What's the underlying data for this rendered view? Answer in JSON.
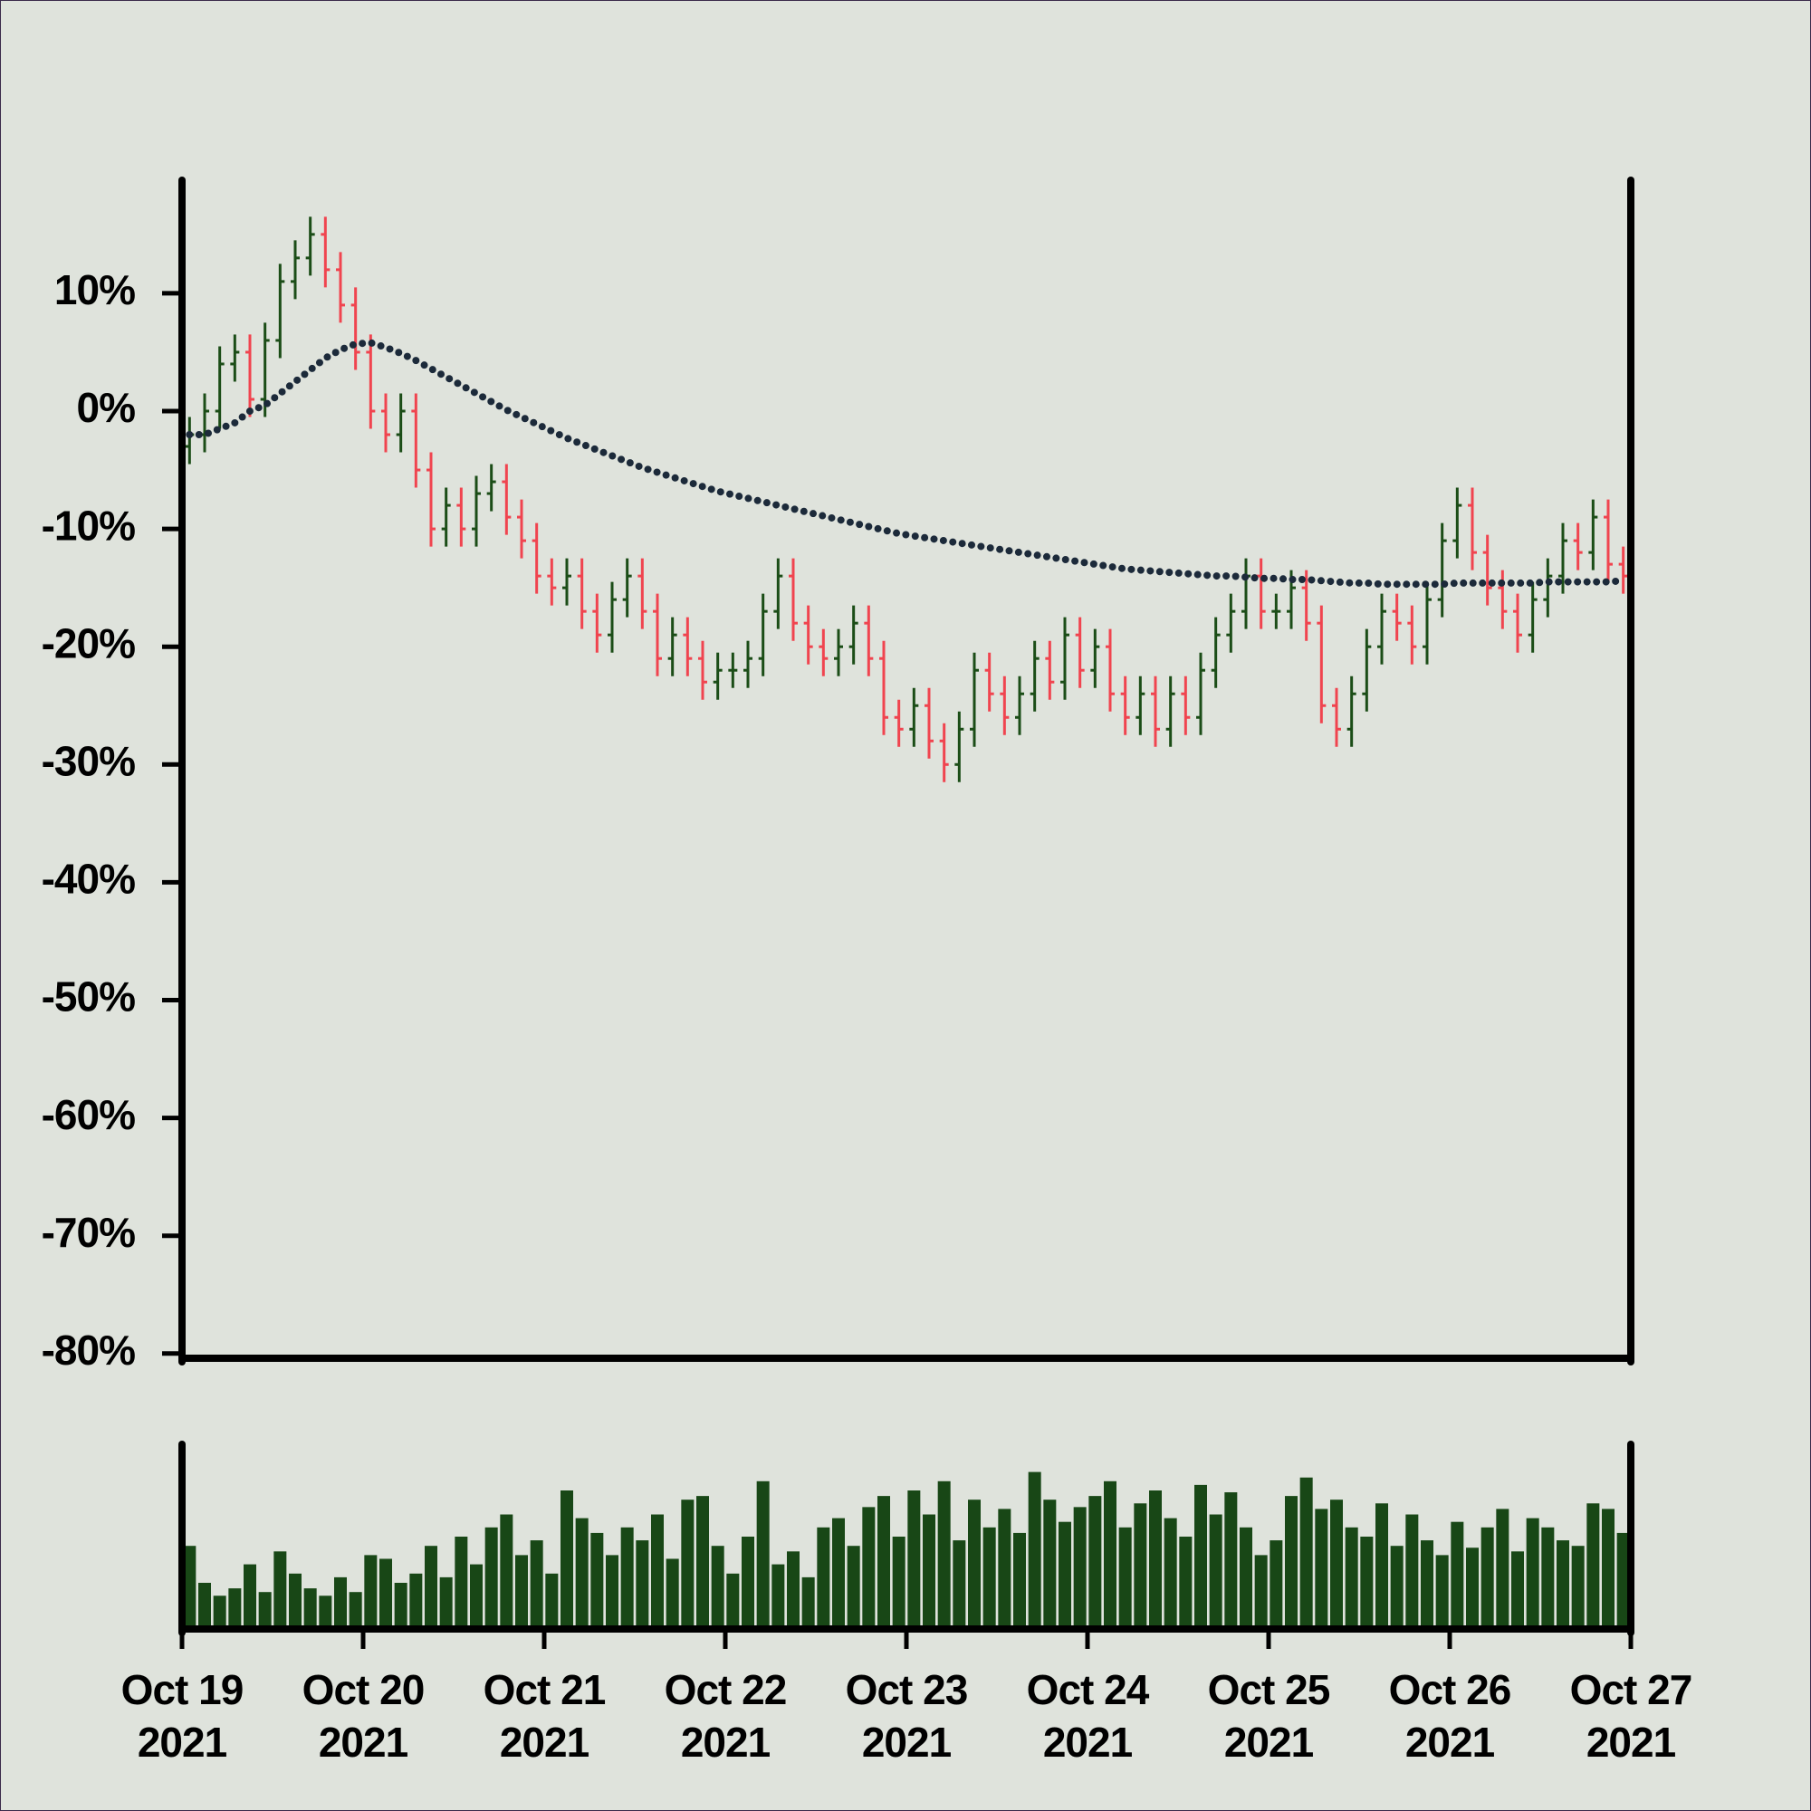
{
  "chart_data": [
    {
      "type": "ohlc",
      "up_color": "#1b4d17",
      "down_color": "#f0444f",
      "ylim": [
        -80.4,
        19.6
      ],
      "yticks": [
        {
          "value": 10,
          "label": "10%"
        },
        {
          "value": 0,
          "label": "0%"
        },
        {
          "value": -10,
          "label": "-10%"
        },
        {
          "value": -20,
          "label": "-20%"
        },
        {
          "value": -30,
          "label": "-30%"
        },
        {
          "value": -40,
          "label": "-40%"
        },
        {
          "value": -50,
          "label": "-50%"
        },
        {
          "value": -60,
          "label": "-60%"
        },
        {
          "value": -70,
          "label": "-70%"
        },
        {
          "value": -80,
          "label": "-80%"
        }
      ],
      "open": [
        -3,
        -2,
        0,
        4,
        5,
        1,
        6,
        11,
        13,
        15,
        12,
        9,
        5,
        0,
        -2,
        0,
        -5,
        -10,
        -8,
        -10,
        -7,
        -6,
        -9,
        -11,
        -14,
        -15,
        -14,
        -17,
        -19,
        -16,
        -14,
        -17,
        -21,
        -19,
        -21,
        -23,
        -22,
        -22,
        -21,
        -17,
        -14,
        -18,
        -20,
        -21,
        -20,
        -18,
        -21,
        -26,
        -27,
        -25,
        -28,
        -30,
        -27,
        -22,
        -24,
        -26,
        -24,
        -21,
        -23,
        -19,
        -22,
        -20,
        -24,
        -26,
        -24,
        -27,
        -24,
        -26,
        -22,
        -19,
        -17,
        -14,
        -17,
        -17,
        -15,
        -18,
        -25,
        -27,
        -24,
        -20,
        -17,
        -18,
        -20,
        -16,
        -11,
        -8,
        -12,
        -15,
        -17,
        -19,
        -16,
        -14,
        -11,
        -12,
        -9,
        -13
      ],
      "high": [
        -0.5,
        1.5,
        5.5,
        6.5,
        6.5,
        7.5,
        12.5,
        14.5,
        16.5,
        16.5,
        13.5,
        10.5,
        6.5,
        1.5,
        1.5,
        1.5,
        -3.5,
        -6.5,
        -6.5,
        -5.5,
        -4.5,
        -4.5,
        -7.5,
        -9.5,
        -12.5,
        -12.5,
        -12.5,
        -15.5,
        -14.5,
        -12.5,
        -12.5,
        -15.5,
        -17.5,
        -17.5,
        -19.5,
        -20.5,
        -20.5,
        -19.5,
        -15.5,
        -12.5,
        -12.5,
        -16.5,
        -18.5,
        -18.5,
        -16.5,
        -16.5,
        -19.5,
        -24.5,
        -23.5,
        -23.5,
        -26.5,
        -25.5,
        -20.5,
        -20.5,
        -22.5,
        -22.5,
        -19.5,
        -19.5,
        -17.5,
        -17.5,
        -18.5,
        -18.5,
        -22.5,
        -22.5,
        -22.5,
        -22.5,
        -22.5,
        -20.5,
        -17.5,
        -15.5,
        -12.5,
        -12.5,
        -15.5,
        -13.5,
        -13.5,
        -16.5,
        -23.5,
        -22.5,
        -18.5,
        -15.5,
        -15.5,
        -16.5,
        -14.5,
        -9.5,
        -6.5,
        -6.5,
        -10.5,
        -13.5,
        -15.5,
        -14.5,
        -12.5,
        -9.5,
        -9.5,
        -7.5,
        -7.5,
        -11.5
      ],
      "low": [
        -4.5,
        -3.5,
        -1.5,
        2.5,
        -0.5,
        -0.5,
        4.5,
        9.5,
        11.5,
        10.5,
        7.5,
        3.5,
        -1.5,
        -3.5,
        -3.5,
        -6.5,
        -11.5,
        -11.5,
        -11.5,
        -11.5,
        -8.5,
        -10.5,
        -12.5,
        -15.5,
        -16.5,
        -16.5,
        -18.5,
        -20.5,
        -20.5,
        -17.5,
        -18.5,
        -22.5,
        -22.5,
        -22.5,
        -24.5,
        -24.5,
        -23.5,
        -23.5,
        -22.5,
        -18.5,
        -19.5,
        -21.5,
        -22.5,
        -22.5,
        -21.5,
        -22.5,
        -27.5,
        -28.5,
        -28.5,
        -29.5,
        -31.5,
        -31.5,
        -28.5,
        -25.5,
        -27.5,
        -27.5,
        -25.5,
        -24.5,
        -24.5,
        -23.5,
        -23.5,
        -25.5,
        -27.5,
        -27.5,
        -28.5,
        -28.5,
        -27.5,
        -27.5,
        -23.5,
        -20.5,
        -18.5,
        -18.5,
        -18.5,
        -18.5,
        -19.5,
        -26.5,
        -28.5,
        -28.5,
        -25.5,
        -21.5,
        -19.5,
        -21.5,
        -21.5,
        -17.5,
        -12.5,
        -13.5,
        -16.5,
        -18.5,
        -20.5,
        -20.5,
        -17.5,
        -15.5,
        -13.5,
        -13.5,
        -14.5,
        -15.5
      ],
      "close": [
        -2,
        0,
        4,
        5,
        1,
        6,
        11,
        13,
        15,
        12,
        9,
        5,
        0,
        -2,
        0,
        -5,
        -10,
        -8,
        -10,
        -7,
        -6,
        -9,
        -11,
        -14,
        -15,
        -14,
        -17,
        -19,
        -16,
        -14,
        -17,
        -21,
        -19,
        -21,
        -23,
        -22,
        -22,
        -21,
        -17,
        -14,
        -18,
        -20,
        -21,
        -20,
        -18,
        -21,
        -26,
        -27,
        -25,
        -28,
        -30,
        -27,
        -22,
        -24,
        -26,
        -24,
        -21,
        -23,
        -19,
        -22,
        -20,
        -24,
        -26,
        -24,
        -27,
        -24,
        -26,
        -22,
        -19,
        -17,
        -14,
        -17,
        -17,
        -15,
        -18,
        -25,
        -27,
        -24,
        -20,
        -17,
        -18,
        -20,
        -16,
        -11,
        -8,
        -12,
        -15,
        -17,
        -19,
        -16,
        -14,
        -11,
        -12,
        -9,
        -13,
        -14
      ],
      "moving_average": {
        "color": "#1c2a3a",
        "values": [
          -2,
          -2,
          -1.5,
          -1,
          0,
          0.5,
          1.5,
          2.5,
          3.5,
          4.5,
          5.2,
          5.7,
          5.8,
          5.4,
          4.9,
          4.3,
          3.6,
          2.9,
          2.2,
          1.5,
          0.8,
          0.1,
          -0.5,
          -1.1,
          -1.7,
          -2.3,
          -2.8,
          -3.3,
          -3.8,
          -4.3,
          -4.8,
          -5.2,
          -5.6,
          -6,
          -6.4,
          -6.8,
          -7.1,
          -7.4,
          -7.7,
          -8,
          -8.3,
          -8.6,
          -8.9,
          -9.2,
          -9.5,
          -9.8,
          -10.1,
          -10.4,
          -10.6,
          -10.8,
          -11,
          -11.2,
          -11.4,
          -11.6,
          -11.8,
          -12,
          -12.2,
          -12.4,
          -12.6,
          -12.8,
          -13,
          -13.2,
          -13.4,
          -13.5,
          -13.6,
          -13.7,
          -13.8,
          -13.9,
          -14,
          -14,
          -14.1,
          -14.2,
          -14.2,
          -14.3,
          -14.3,
          -14.4,
          -14.5,
          -14.6,
          -14.6,
          -14.7,
          -14.7,
          -14.7,
          -14.7,
          -14.7,
          -14.6,
          -14.6,
          -14.6,
          -14.6,
          -14.6,
          -14.6,
          -14.5,
          -14.5,
          -14.5,
          -14.5,
          -14.5,
          -14.4
        ]
      }
    },
    {
      "type": "bar",
      "color": "#184716",
      "ylim": [
        0,
        100
      ],
      "xlim": [
        "2021-10-19",
        "2021-10-27"
      ],
      "xticks": [
        {
          "value": "2021-10-19",
          "label": "Oct 19\n2021"
        },
        {
          "value": "2021-10-20",
          "label": "Oct 20\n2021"
        },
        {
          "value": "2021-10-21",
          "label": "Oct 21\n2021"
        },
        {
          "value": "2021-10-22",
          "label": "Oct 22\n2021"
        },
        {
          "value": "2021-10-23",
          "label": "Oct 23\n2021"
        },
        {
          "value": "2021-10-24",
          "label": "Oct 24\n2021"
        },
        {
          "value": "2021-10-25",
          "label": "Oct 25\n2021"
        },
        {
          "value": "2021-10-26",
          "label": "Oct 26\n2021"
        },
        {
          "value": "2021-10-27",
          "label": "Oct 27\n2021"
        }
      ],
      "values": [
        45,
        25,
        18,
        22,
        35,
        20,
        42,
        30,
        22,
        18,
        28,
        20,
        40,
        38,
        25,
        30,
        45,
        28,
        50,
        35,
        55,
        62,
        40,
        48,
        30,
        75,
        60,
        52,
        40,
        55,
        48,
        62,
        38,
        70,
        72,
        45,
        30,
        50,
        80,
        35,
        42,
        28,
        55,
        60,
        45,
        66,
        72,
        50,
        75,
        62,
        80,
        48,
        70,
        55,
        65,
        52,
        85,
        70,
        58,
        66,
        72,
        80,
        55,
        68,
        75,
        60,
        50,
        78,
        62,
        74,
        55,
        40,
        48,
        72,
        82,
        65,
        70,
        55,
        50,
        68,
        45,
        62,
        48,
        40,
        58,
        44,
        55,
        65,
        42,
        60,
        55,
        48,
        45,
        68,
        65,
        52
      ]
    }
  ]
}
